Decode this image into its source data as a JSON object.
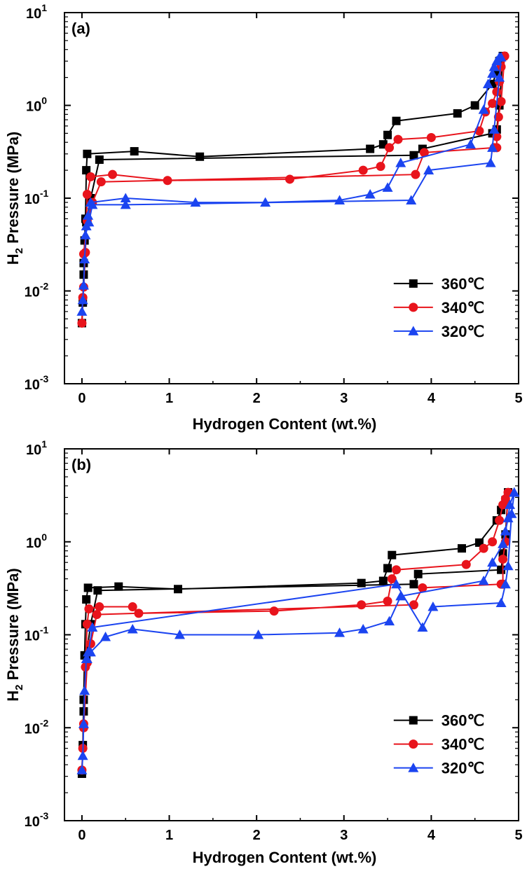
{
  "chart_data": [
    {
      "type": "line",
      "panel_label": "(a)",
      "xlabel": "Hydrogen Content (wt.%)",
      "ylabel": "H",
      "ylabel_sub": "2",
      "ylabel_rest": " Pressure (MPa)",
      "yscale": "log",
      "xlim": [
        -0.2,
        5.0
      ],
      "ylim": [
        0.001,
        10
      ],
      "x_ticks": [
        0,
        1,
        2,
        3,
        4,
        5
      ],
      "x_tick_labels": [
        "0",
        "1",
        "2",
        "3",
        "4",
        "5"
      ],
      "y_ticks": [
        0.001,
        0.01,
        0.1,
        1,
        10
      ],
      "y_tick_bases": [
        "10",
        "10",
        "10",
        "10",
        "10"
      ],
      "y_tick_exps": [
        "-3",
        "-2",
        "-1",
        "0",
        "1"
      ],
      "legend_position": "lower-right",
      "series": [
        {
          "name": "360℃",
          "color": "#000000",
          "marker": "square",
          "x": [
            0.0,
            0.01,
            0.02,
            0.03,
            0.04,
            0.05,
            0.06,
            0.6,
            1.35,
            3.3,
            3.45,
            3.5,
            3.6,
            4.3,
            4.5,
            4.7,
            4.75,
            4.78,
            4.82,
            4.82,
            4.78,
            4.75,
            4.7,
            3.9,
            3.8,
            0.2,
            0.1,
            0.05,
            0.02
          ],
          "y": [
            0.0045,
            0.0075,
            0.015,
            0.035,
            0.06,
            0.2,
            0.3,
            0.32,
            0.28,
            0.34,
            0.38,
            0.48,
            0.68,
            0.82,
            1.0,
            1.7,
            2.3,
            3.0,
            3.4,
            3.4,
            1.0,
            0.55,
            0.5,
            0.34,
            0.29,
            0.26,
            0.1,
            0.055,
            0.02
          ]
        },
        {
          "name": "340℃",
          "color": "#e8141c",
          "marker": "circle",
          "x": [
            0.0,
            0.01,
            0.02,
            0.04,
            0.06,
            0.1,
            0.35,
            0.98,
            2.38,
            3.22,
            3.42,
            3.52,
            3.62,
            4.0,
            4.55,
            4.62,
            4.7,
            4.75,
            4.78,
            4.8,
            4.84,
            4.84,
            4.8,
            4.77,
            4.75,
            4.75,
            4.72,
            3.92,
            3.82,
            0.22,
            0.12,
            0.06,
            0.02
          ],
          "y": [
            0.0045,
            0.0085,
            0.011,
            0.026,
            0.11,
            0.17,
            0.18,
            0.155,
            0.16,
            0.2,
            0.22,
            0.35,
            0.43,
            0.45,
            0.53,
            0.85,
            1.05,
            1.4,
            1.8,
            2.6,
            3.4,
            3.4,
            1.1,
            0.75,
            0.46,
            0.35,
            0.35,
            0.31,
            0.18,
            0.15,
            0.09,
            0.057,
            0.025
          ]
        },
        {
          "name": "320℃",
          "color": "#1b44f0",
          "marker": "triangle",
          "x": [
            0.0,
            0.01,
            0.02,
            0.03,
            0.05,
            0.07,
            0.1,
            0.5,
            1.3,
            2.1,
            2.95,
            3.3,
            3.5,
            3.65,
            4.45,
            4.6,
            4.65,
            4.7,
            4.72,
            4.75,
            4.78,
            4.8,
            4.78,
            4.72,
            4.7,
            4.68,
            3.97,
            3.77,
            0.5,
            0.12,
            0.08,
            0.04
          ],
          "y": [
            0.006,
            0.008,
            0.0115,
            0.022,
            0.05,
            0.065,
            0.09,
            0.1,
            0.09,
            0.09,
            0.095,
            0.11,
            0.13,
            0.24,
            0.38,
            0.9,
            1.7,
            2.2,
            2.6,
            3.0,
            3.3,
            3.3,
            2.0,
            0.55,
            0.35,
            0.24,
            0.2,
            0.095,
            0.085,
            0.085,
            0.055,
            0.04
          ]
        }
      ]
    },
    {
      "type": "line",
      "panel_label": "(b)",
      "xlabel": "Hydrogen Content (wt.%)",
      "ylabel": "H",
      "ylabel_sub": "2",
      "ylabel_rest": " Pressure (MPa)",
      "yscale": "log",
      "xlim": [
        -0.2,
        5.0
      ],
      "ylim": [
        0.001,
        10
      ],
      "x_ticks": [
        0,
        1,
        2,
        3,
        4,
        5
      ],
      "x_tick_labels": [
        "0",
        "1",
        "2",
        "3",
        "4",
        "5"
      ],
      "y_ticks": [
        0.001,
        0.01,
        0.1,
        1,
        10
      ],
      "y_tick_bases": [
        "10",
        "10",
        "10",
        "10",
        "10"
      ],
      "y_tick_exps": [
        "-3",
        "-2",
        "-1",
        "0",
        "1"
      ],
      "legend_position": "lower-right",
      "series": [
        {
          "name": "360℃",
          "color": "#000000",
          "marker": "square",
          "x": [
            0.0,
            0.01,
            0.02,
            0.03,
            0.04,
            0.05,
            0.07,
            0.42,
            1.1,
            3.2,
            3.45,
            3.5,
            3.55,
            4.35,
            4.55,
            4.75,
            4.8,
            4.85,
            4.88,
            4.88,
            4.85,
            4.82,
            4.8,
            3.85,
            3.8,
            0.18,
            0.1,
            0.05,
            0.02
          ],
          "y": [
            0.0032,
            0.0065,
            0.02,
            0.06,
            0.13,
            0.24,
            0.32,
            0.33,
            0.31,
            0.36,
            0.38,
            0.52,
            0.72,
            0.85,
            0.98,
            1.7,
            2.2,
            2.8,
            3.4,
            3.4,
            1.2,
            0.75,
            0.5,
            0.45,
            0.35,
            0.3,
            0.13,
            0.06,
            0.015
          ]
        },
        {
          "name": "340℃",
          "color": "#e8141c",
          "marker": "circle",
          "x": [
            0.0,
            0.01,
            0.02,
            0.04,
            0.06,
            0.08,
            0.2,
            0.58,
            0.65,
            2.2,
            3.2,
            3.5,
            3.55,
            3.6,
            4.4,
            4.6,
            4.7,
            4.78,
            4.82,
            4.85,
            4.88,
            4.88,
            4.85,
            4.82,
            4.82,
            4.8,
            3.9,
            3.8,
            0.17,
            0.1,
            0.06,
            0.02
          ],
          "y": [
            0.0035,
            0.006,
            0.011,
            0.045,
            0.13,
            0.19,
            0.2,
            0.2,
            0.17,
            0.18,
            0.21,
            0.23,
            0.4,
            0.5,
            0.57,
            0.85,
            1.0,
            1.7,
            2.5,
            2.9,
            3.4,
            3.4,
            1.0,
            0.65,
            0.35,
            0.35,
            0.32,
            0.21,
            0.165,
            0.08,
            0.05,
            0.01
          ]
        },
        {
          "name": "320℃",
          "color": "#1b44f0",
          "marker": "triangle",
          "x": [
            0.0,
            0.01,
            0.02,
            0.03,
            0.05,
            0.07,
            0.1,
            0.27,
            0.58,
            1.12,
            2.02,
            2.95,
            3.22,
            3.52,
            3.65,
            4.6,
            4.7,
            4.82,
            4.85,
            4.88,
            4.9,
            4.95,
            4.95,
            4.92,
            4.88,
            4.85,
            4.8,
            4.02,
            3.9,
            3.6,
            0.12,
            0.06
          ],
          "y": [
            0.0035,
            0.005,
            0.011,
            0.025,
            0.055,
            0.065,
            0.065,
            0.095,
            0.115,
            0.1,
            0.1,
            0.105,
            0.115,
            0.14,
            0.26,
            0.38,
            0.6,
            0.95,
            1.3,
            1.8,
            2.5,
            3.4,
            3.4,
            2.0,
            0.55,
            0.35,
            0.22,
            0.2,
            0.12,
            0.35,
            0.12,
            0.055
          ]
        }
      ]
    }
  ]
}
